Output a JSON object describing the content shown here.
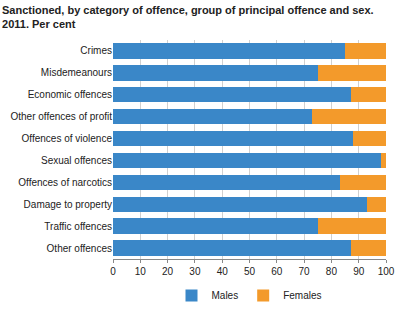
{
  "chart_data": {
    "type": "bar",
    "orientation": "horizontal",
    "stacked": true,
    "title": "Sanctioned, by category of offence, group of principal offence and sex. 2011. Per cent",
    "categories": [
      "Crimes",
      "Misdemeanours",
      "Economic offences",
      "Other offences of profit",
      "Offences of violence",
      "Sexual offences",
      "Offences of narcotics",
      "Damage to property",
      "Traffic offences",
      "Other offences"
    ],
    "series": [
      {
        "name": "Males",
        "color": "#3a87c8",
        "values": [
          85,
          75,
          87,
          73,
          88,
          98,
          83,
          93,
          75,
          87
        ]
      },
      {
        "name": "Females",
        "color": "#f39a2b",
        "values": [
          15,
          25,
          13,
          27,
          12,
          2,
          17,
          7,
          25,
          13
        ]
      }
    ],
    "xlim": [
      0,
      100
    ],
    "xticks": [
      0,
      10,
      20,
      30,
      40,
      50,
      60,
      70,
      80,
      90,
      100
    ],
    "grid": true,
    "legend": "bottom"
  }
}
